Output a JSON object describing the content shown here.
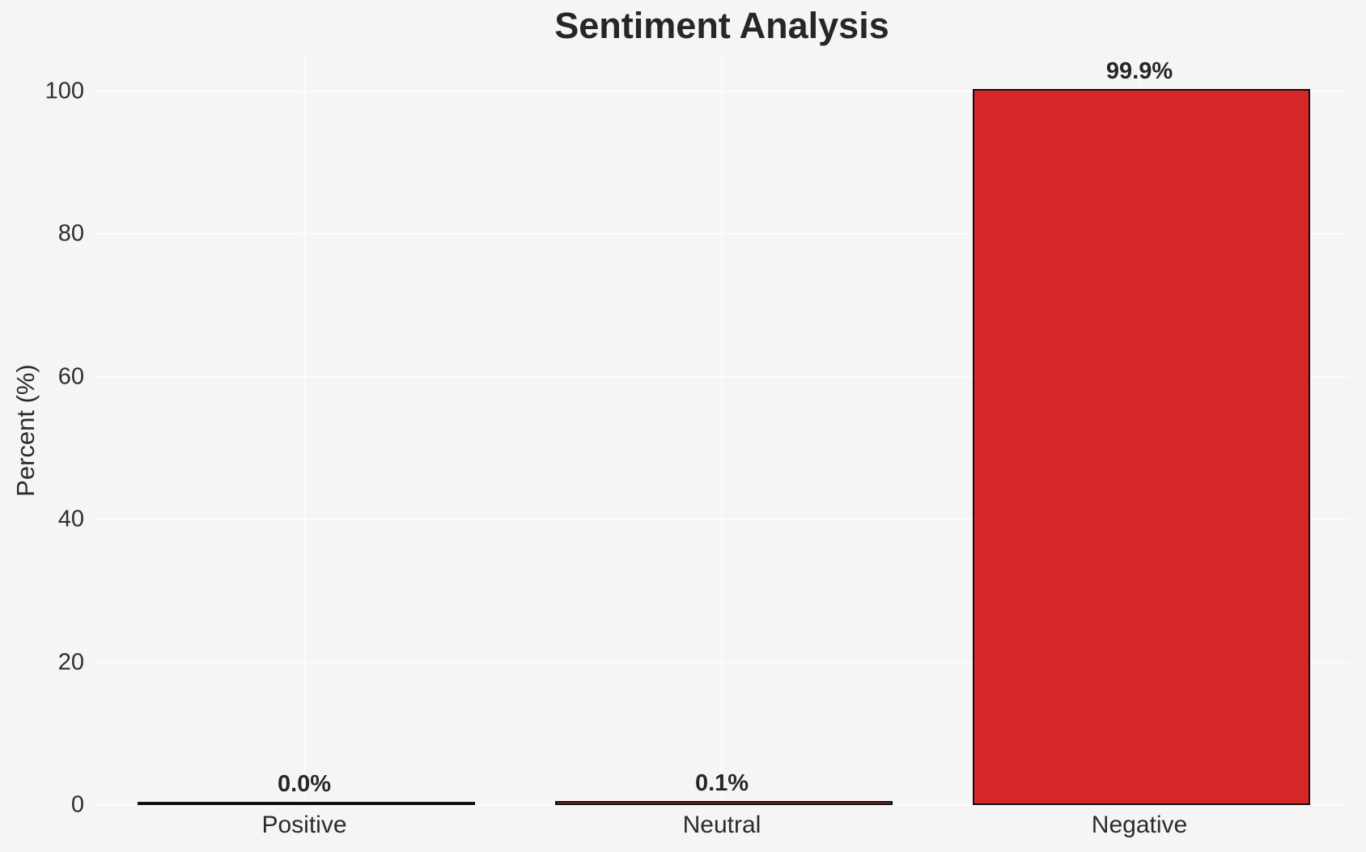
{
  "page": {
    "background_color": "#f5f5f6",
    "gridline_color": "#fcfcfc",
    "text_color": "#2b2b2b"
  },
  "chart_data": {
    "type": "bar",
    "title": "Sentiment Analysis",
    "xlabel": "",
    "ylabel": "Percent (%)",
    "categories": [
      "Positive",
      "Neutral",
      "Negative"
    ],
    "values": [
      0.0,
      0.1,
      99.9
    ],
    "value_labels": [
      "0.0%",
      "0.1%",
      "99.9%"
    ],
    "yticks": [
      0,
      20,
      40,
      60,
      80,
      100
    ],
    "ytick_labels": [
      "0",
      "20",
      "40",
      "60",
      "80",
      "100"
    ],
    "ylim": [
      0,
      105
    ],
    "grid": "on",
    "grid_orientation": "horizontal and vertical",
    "legend": "none",
    "bar_fill_color": "#d62728",
    "bar_edge_color": "#111111"
  }
}
